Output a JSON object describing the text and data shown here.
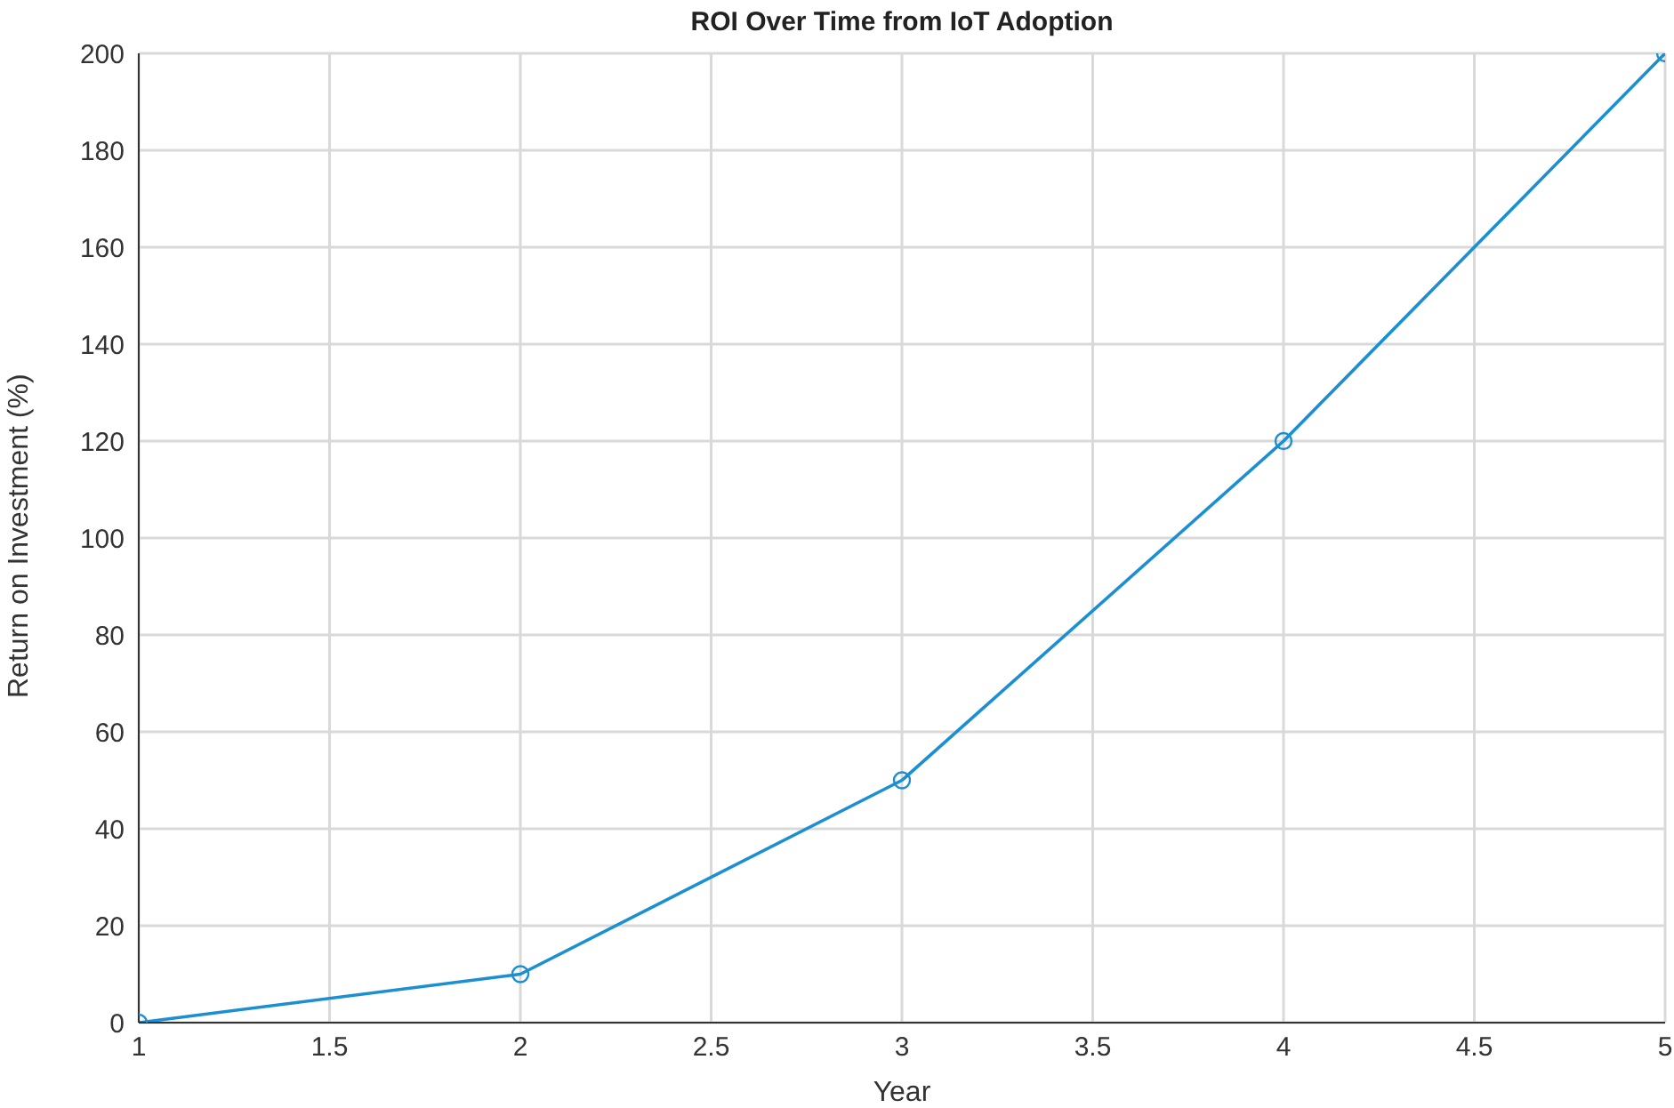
{
  "chart_data": {
    "type": "line",
    "title": "ROI Over Time from IoT Adoption",
    "xlabel": "Year",
    "ylabel": "Return on Investment (%)",
    "x": [
      1,
      2,
      3,
      4,
      5
    ],
    "series": [
      {
        "color": "#1b8fd1",
        "values": [
          0,
          10,
          50,
          120,
          200
        ]
      }
    ],
    "xlim": [
      1,
      5
    ],
    "xticks": [
      1,
      1.5,
      2,
      2.5,
      3,
      3.5,
      4,
      4.5,
      5
    ],
    "ylim": [
      0,
      200
    ],
    "yticks": [
      0,
      20,
      40,
      60,
      80,
      100,
      120,
      140,
      160,
      180,
      200
    ],
    "grid": true,
    "marker": "circle",
    "line_style": "solid",
    "legend": false
  }
}
